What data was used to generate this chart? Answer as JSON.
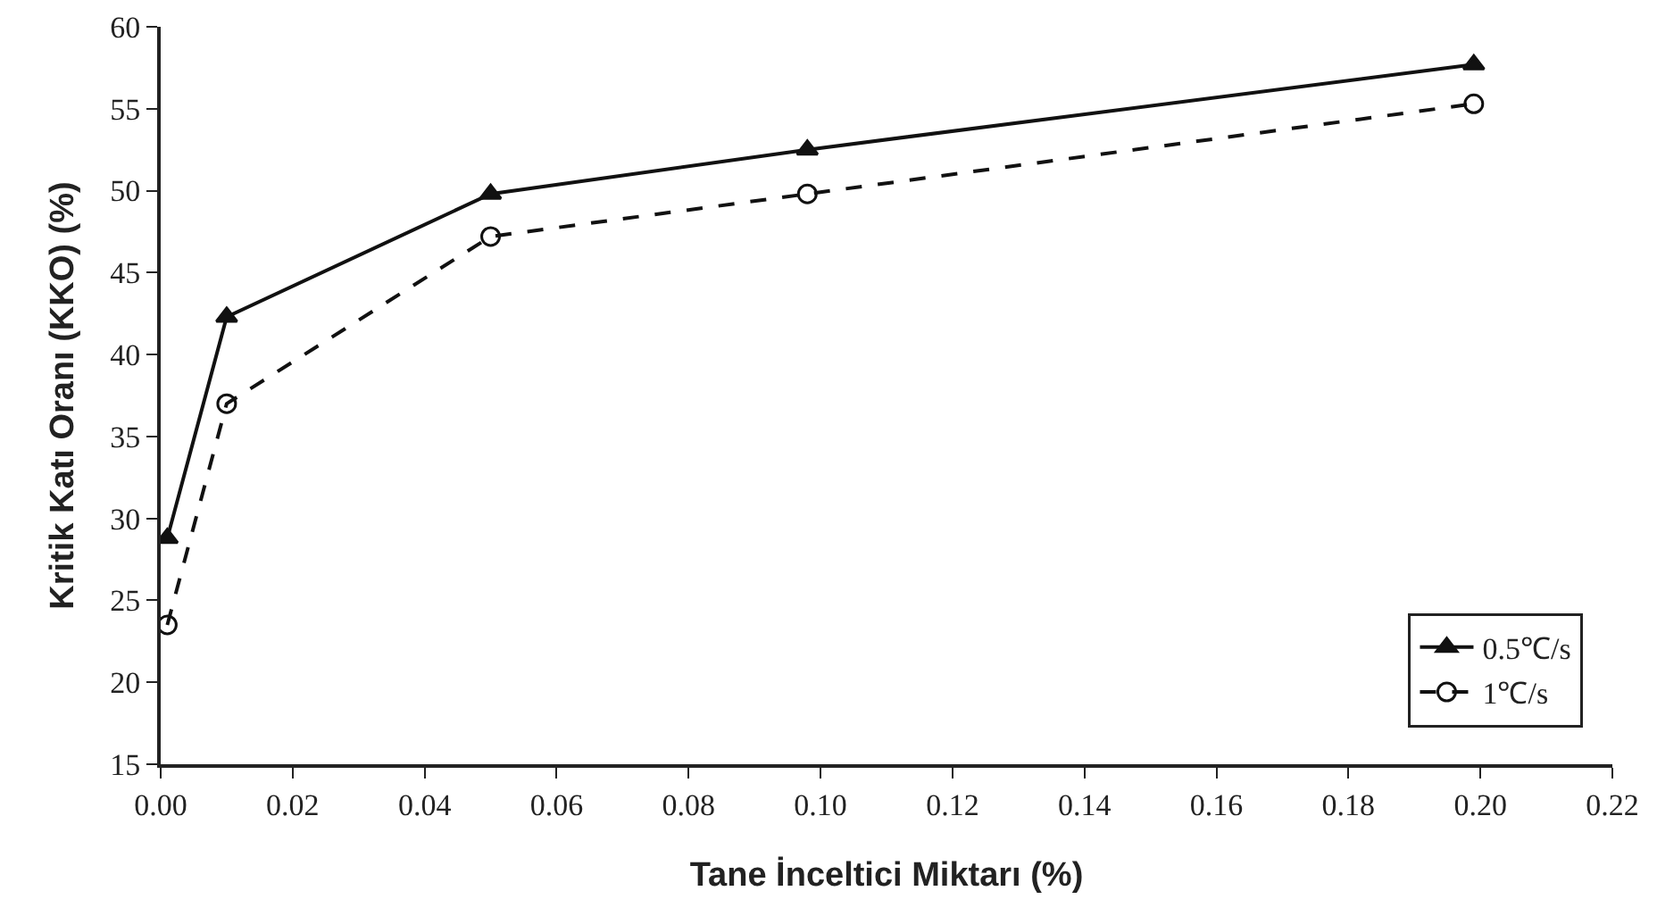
{
  "chart_data": {
    "type": "line",
    "xlabel": "Tane İnceltici Miktarı (%)",
    "ylabel": "Kritik Katı Oranı (KKO) (%)",
    "xlim": [
      0,
      0.22
    ],
    "xticks": [
      {
        "value": 0,
        "label": "0.00"
      },
      {
        "value": 0.02,
        "label": "0.02"
      },
      {
        "value": 0.04,
        "label": "0.04"
      },
      {
        "value": 0.06,
        "label": "0.06"
      },
      {
        "value": 0.08,
        "label": "0.08"
      },
      {
        "value": 0.1,
        "label": "0.10"
      },
      {
        "value": 0.12,
        "label": "0.12"
      },
      {
        "value": 0.14,
        "label": "0.14"
      },
      {
        "value": 0.16,
        "label": "0.16"
      },
      {
        "value": 0.18,
        "label": "0.18"
      },
      {
        "value": 0.2,
        "label": "0.20"
      },
      {
        "value": 0.22,
        "label": "0.22"
      }
    ],
    "ylim": [
      15,
      60
    ],
    "yticks": [
      15,
      20,
      25,
      30,
      35,
      40,
      45,
      50,
      55,
      60
    ],
    "grid": false,
    "legend": "bottom right",
    "x": [
      0.001,
      0.01,
      0.05,
      0.098,
      0.199
    ],
    "series": [
      {
        "name": "0.5℃/s",
        "color": "#111111",
        "marker": "triangle",
        "line_style": "solid",
        "values": [
          28.8,
          42.3,
          49.8,
          52.5,
          57.7
        ]
      },
      {
        "name": "1℃/s",
        "color": "#111111",
        "marker": "circle",
        "line_style": "dashed",
        "values": [
          23.5,
          37,
          47.2,
          49.8,
          55.3
        ]
      }
    ]
  }
}
